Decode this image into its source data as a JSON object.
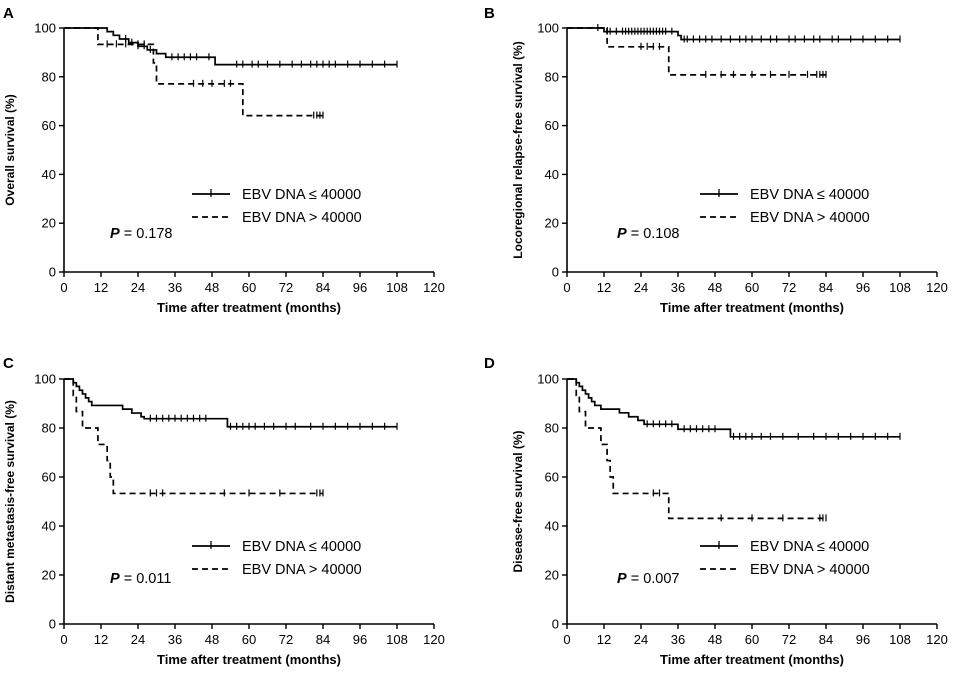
{
  "figure": {
    "description_free": true
  },
  "chart_data": [
    {
      "type": "line",
      "panel": "A",
      "ylabel": "Overall survival (%)",
      "xlabel": "Time after treatment (months)",
      "xlim": [
        0,
        120
      ],
      "ylim": [
        0,
        100
      ],
      "xticks": [
        "0",
        "12",
        "24",
        "36",
        "48",
        "60",
        "72",
        "84",
        "96",
        "108",
        "120"
      ],
      "yticks": [
        "0",
        "20",
        "40",
        "60",
        "80",
        "100"
      ],
      "p_label": "P",
      "p_value": "= 0.178",
      "series": [
        {
          "name": "EBV DNA ≤ 40000",
          "style": "solid",
          "steps": [
            [
              0,
              100
            ],
            [
              12,
              100
            ],
            [
              14,
              98.5
            ],
            [
              16,
              97
            ],
            [
              18,
              95.5
            ],
            [
              21,
              94
            ],
            [
              24,
              92.5
            ],
            [
              27,
              91
            ],
            [
              30,
              89.5
            ],
            [
              33,
              88
            ],
            [
              48,
              88
            ],
            [
              49,
              85
            ],
            [
              108,
              85
            ]
          ],
          "censors": [
            20,
            22,
            24,
            26,
            28,
            35,
            37,
            39,
            41,
            43,
            47,
            56,
            58,
            61,
            63,
            66,
            70,
            74,
            77,
            80,
            82,
            84,
            86,
            88,
            92,
            96,
            100,
            104,
            108
          ]
        },
        {
          "name": "EBV DNA > 40000",
          "style": "dashed",
          "steps": [
            [
              0,
              100
            ],
            [
              10,
              100
            ],
            [
              11,
              93.3
            ],
            [
              28,
              93.3
            ],
            [
              29,
              85.7
            ],
            [
              30,
              77.1
            ],
            [
              56,
              77.1
            ],
            [
              58,
              64.1
            ],
            [
              84,
              64.1
            ]
          ],
          "censors": [
            14,
            17,
            20,
            24,
            26,
            42,
            45,
            48,
            52,
            54,
            81,
            82,
            83,
            84
          ]
        }
      ]
    },
    {
      "type": "line",
      "panel": "B",
      "ylabel": "Locoregional relapse-free survival (%)",
      "xlabel": "Time after treatment (months)",
      "xlim": [
        0,
        120
      ],
      "ylim": [
        0,
        100
      ],
      "xticks": [
        "0",
        "12",
        "24",
        "36",
        "48",
        "60",
        "72",
        "84",
        "96",
        "108",
        "120"
      ],
      "yticks": [
        "0",
        "20",
        "40",
        "60",
        "80",
        "100"
      ],
      "p_label": "P",
      "p_value": "= 0.108",
      "series": [
        {
          "name": "EBV DNA ≤ 40000",
          "style": "solid",
          "steps": [
            [
              0,
              100
            ],
            [
              11,
              100
            ],
            [
              12,
              98.5
            ],
            [
              35,
              98.5
            ],
            [
              36,
              96.9
            ],
            [
              37,
              95.3
            ],
            [
              108,
              95.3
            ]
          ],
          "censors": [
            10,
            13,
            14,
            16,
            18,
            19,
            20,
            21,
            22,
            23,
            24,
            25,
            26,
            27,
            28,
            29,
            30,
            31,
            32,
            34,
            38,
            39,
            41,
            43,
            45,
            47,
            50,
            53,
            56,
            58,
            60,
            63,
            66,
            68,
            72,
            74,
            77,
            80,
            82,
            86,
            88,
            92,
            96,
            100,
            104,
            108
          ]
        },
        {
          "name": "EBV DNA > 40000",
          "style": "dashed",
          "steps": [
            [
              0,
              100
            ],
            [
              12,
              100
            ],
            [
              13,
              92.3
            ],
            [
              32,
              92.3
            ],
            [
              33,
              80.8
            ],
            [
              84,
              80.8
            ]
          ],
          "censors": [
            24,
            26,
            28,
            30,
            45,
            50,
            54,
            60,
            66,
            72,
            78,
            81,
            82,
            83,
            84
          ]
        }
      ]
    },
    {
      "type": "line",
      "panel": "C",
      "ylabel": "Distant metastasis-free survival (%)",
      "xlabel": "Time after treatment (months)",
      "xlim": [
        0,
        120
      ],
      "ylim": [
        0,
        100
      ],
      "xticks": [
        "0",
        "12",
        "24",
        "36",
        "48",
        "60",
        "72",
        "84",
        "96",
        "108",
        "120"
      ],
      "yticks": [
        "0",
        "20",
        "40",
        "60",
        "80",
        "100"
      ],
      "p_label": "P",
      "p_value": "= 0.011",
      "series": [
        {
          "name": "EBV DNA ≤ 40000",
          "style": "solid",
          "steps": [
            [
              0,
              100
            ],
            [
              2,
              100
            ],
            [
              3,
              98.5
            ],
            [
              4,
              97
            ],
            [
              5,
              95.4
            ],
            [
              6,
              93.9
            ],
            [
              7,
              92.3
            ],
            [
              8,
              90.8
            ],
            [
              9,
              89.2
            ],
            [
              18,
              89.2
            ],
            [
              19,
              87.7
            ],
            [
              22,
              86.1
            ],
            [
              25,
              84.6
            ],
            [
              26,
              83.8
            ],
            [
              52,
              83.8
            ],
            [
              53,
              80.5
            ],
            [
              108,
              80.5
            ]
          ],
          "censors": [
            28,
            30,
            32,
            34,
            36,
            38,
            40,
            42,
            44,
            46,
            54,
            56,
            58,
            60,
            62,
            65,
            68,
            72,
            75,
            80,
            84,
            88,
            92,
            96,
            100,
            104,
            108
          ]
        },
        {
          "name": "EBV DNA > 40000",
          "style": "dashed",
          "steps": [
            [
              0,
              100
            ],
            [
              2,
              100
            ],
            [
              3,
              93.3
            ],
            [
              4,
              86.7
            ],
            [
              6,
              80
            ],
            [
              10,
              80
            ],
            [
              11,
              73.3
            ],
            [
              14,
              66.7
            ],
            [
              15,
              60
            ],
            [
              16,
              53.3
            ],
            [
              84,
              53.3
            ]
          ],
          "censors": [
            28,
            30,
            32,
            52,
            60,
            70,
            82,
            83,
            84
          ]
        }
      ]
    },
    {
      "type": "line",
      "panel": "D",
      "ylabel": "Disease-free survival (%)",
      "xlabel": "Time after treatment (months)",
      "xlim": [
        0,
        120
      ],
      "ylim": [
        0,
        100
      ],
      "xticks": [
        "0",
        "12",
        "24",
        "36",
        "48",
        "60",
        "72",
        "84",
        "96",
        "108",
        "120"
      ],
      "yticks": [
        "0",
        "20",
        "40",
        "60",
        "80",
        "100"
      ],
      "p_label": "P",
      "p_value": "= 0.007",
      "series": [
        {
          "name": "EBV DNA ≤ 40000",
          "style": "solid",
          "steps": [
            [
              0,
              100
            ],
            [
              2,
              100
            ],
            [
              3,
              98.5
            ],
            [
              4,
              97
            ],
            [
              5,
              95.4
            ],
            [
              6,
              93.9
            ],
            [
              7,
              92.3
            ],
            [
              8,
              90.8
            ],
            [
              9,
              89.2
            ],
            [
              11,
              87.7
            ],
            [
              16,
              87.7
            ],
            [
              17,
              86.2
            ],
            [
              20,
              84.6
            ],
            [
              23,
              83.1
            ],
            [
              25,
              81.5
            ],
            [
              35,
              81.5
            ],
            [
              36,
              79.5
            ],
            [
              52,
              79.5
            ],
            [
              53,
              76.4
            ],
            [
              108,
              76.4
            ]
          ],
          "censors": [
            26,
            28,
            30,
            32,
            34,
            38,
            40,
            42,
            44,
            46,
            48,
            54,
            56,
            58,
            60,
            63,
            66,
            70,
            75,
            80,
            84,
            88,
            92,
            96,
            100,
            104,
            108
          ]
        },
        {
          "name": "EBV DNA > 40000",
          "style": "dashed",
          "steps": [
            [
              0,
              100
            ],
            [
              2,
              100
            ],
            [
              3,
              93.3
            ],
            [
              4,
              86.7
            ],
            [
              6,
              80
            ],
            [
              10,
              80
            ],
            [
              11,
              73.3
            ],
            [
              13,
              66.7
            ],
            [
              14,
              60
            ],
            [
              15,
              53.3
            ],
            [
              32,
              53.3
            ],
            [
              33,
              43.1
            ],
            [
              84,
              43.1
            ]
          ],
          "censors": [
            28,
            30,
            50,
            60,
            70,
            82,
            83,
            84
          ]
        }
      ]
    }
  ]
}
